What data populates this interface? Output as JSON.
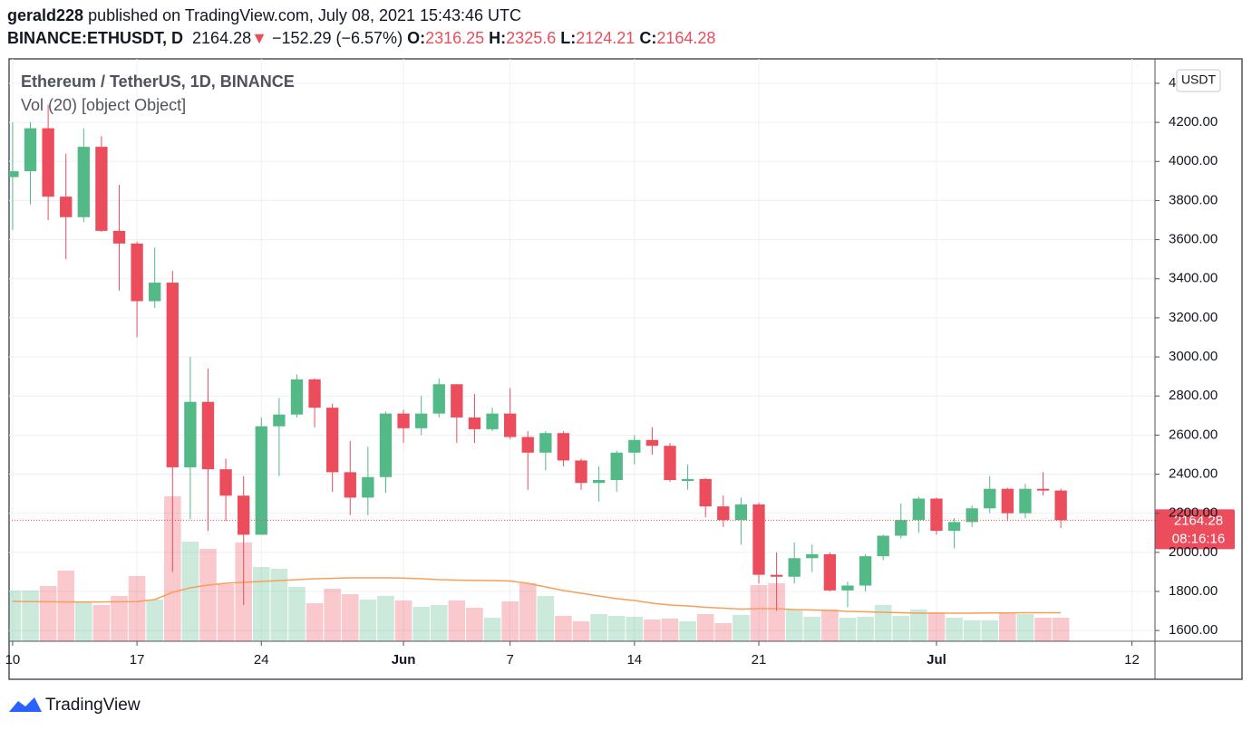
{
  "header": {
    "user": "gerald228",
    "published": "published on TradingView.com, July 08, 2021 15:43:46 UTC",
    "symbol": "BINANCE:ETHUSDT, D",
    "arrow": "▼",
    "change": "−152.29 (−6.57%)",
    "o": "O:",
    "h": "H:",
    "l": "L:",
    "c": "C:"
  },
  "chart_data": {
    "type": "candlestick",
    "title": "Ethereum / TetherUS, 1D, BINANCE",
    "volume_title": "Vol (20) [object Object]",
    "currency": "USDT",
    "countdown": "08:16:16",
    "up_color": "#53b987",
    "down_color": "#eb4d5c",
    "ma_color": "#f5a05a",
    "grid": true,
    "open": [
      3920,
      3950,
      4170,
      3820,
      3715,
      4075,
      3645,
      3580,
      3285,
      3380,
      2435,
      2770,
      2425,
      2290,
      2090,
      2645,
      2705,
      2885,
      2740,
      2410,
      2280,
      2385,
      2710,
      2635,
      2710,
      2860,
      2690,
      2630,
      2710,
      2590,
      2510,
      2610,
      2470,
      2355,
      2370,
      2510,
      2575,
      2545,
      2365,
      2375,
      2235,
      2165,
      2245,
      1885,
      1875,
      1970,
      1990,
      1805,
      1830,
      1980,
      2085,
      2165,
      2275,
      2110,
      2155,
      2225,
      2325,
      2200,
      2325,
      2316.25
    ],
    "high": [
      4200,
      4200,
      4290,
      4040,
      4170,
      4130,
      3880,
      3590,
      3560,
      3440,
      3000,
      2940,
      2480,
      2390,
      2690,
      2790,
      2910,
      2890,
      2760,
      2570,
      2540,
      2720,
      2730,
      2800,
      2890,
      2860,
      2810,
      2740,
      2840,
      2620,
      2620,
      2620,
      2480,
      2440,
      2520,
      2600,
      2640,
      2560,
      2450,
      2380,
      2290,
      2280,
      2255,
      2000,
      2050,
      2040,
      2000,
      1850,
      1990,
      2090,
      2250,
      2285,
      2280,
      2175,
      2240,
      2390,
      2330,
      2350,
      2410,
      2325.6
    ],
    "low": [
      3650,
      3780,
      3700,
      3500,
      3690,
      3640,
      3340,
      3100,
      3250,
      1900,
      2170,
      2110,
      2160,
      1730,
      2090,
      2390,
      2690,
      2640,
      2310,
      2190,
      2190,
      2305,
      2560,
      2600,
      2690,
      2560,
      2560,
      2620,
      2580,
      2320,
      2420,
      2440,
      2320,
      2260,
      2310,
      2450,
      2500,
      2360,
      2320,
      2180,
      2130,
      2040,
      1840,
      1700,
      1840,
      1900,
      1800,
      1720,
      1800,
      1960,
      2070,
      2100,
      2090,
      2020,
      2130,
      2200,
      2160,
      2175,
      2290,
      2124.21
    ],
    "close": [
      3950,
      4170,
      3820,
      3715,
      4075,
      3645,
      3580,
      3285,
      3380,
      2435,
      2770,
      2425,
      2290,
      2090,
      2645,
      2705,
      2885,
      2740,
      2410,
      2280,
      2385,
      2710,
      2635,
      2710,
      2860,
      2690,
      2630,
      2710,
      2590,
      2510,
      2610,
      2470,
      2355,
      2370,
      2510,
      2575,
      2545,
      2370,
      2375,
      2235,
      2165,
      2245,
      1885,
      1875,
      1970,
      1990,
      1805,
      1830,
      1980,
      2085,
      2165,
      2275,
      2110,
      2155,
      2225,
      2325,
      2200,
      2325,
      2316,
      2164.28
    ],
    "volume": [
      560,
      560,
      610,
      780,
      440,
      400,
      500,
      720,
      460,
      1600,
      1100,
      1020,
      630,
      1090,
      820,
      800,
      600,
      420,
      580,
      520,
      460,
      500,
      450,
      380,
      400,
      450,
      370,
      260,
      440,
      640,
      500,
      280,
      220,
      300,
      280,
      270,
      240,
      250,
      220,
      300,
      200,
      290,
      620,
      640,
      350,
      270,
      350,
      260,
      270,
      400,
      280,
      350,
      320,
      260,
      230,
      230,
      320,
      300,
      260,
      260
    ],
    "volume_ma": [
      440,
      438,
      436,
      434,
      434,
      434,
      436,
      438,
      460,
      540,
      590,
      620,
      640,
      650,
      660,
      670,
      680,
      690,
      695,
      700,
      700,
      700,
      698,
      690,
      680,
      675,
      672,
      670,
      665,
      640,
      600,
      560,
      530,
      500,
      470,
      450,
      420,
      400,
      390,
      375,
      365,
      355,
      360,
      360,
      350,
      345,
      340,
      330,
      325,
      320,
      315,
      310,
      310,
      310,
      310,
      312,
      312,
      315,
      315,
      315
    ],
    "volume_ylim": [
      0,
      6430
    ],
    "ylim": [
      1545,
      4525
    ],
    "yticks": [
      {
        "value": 1600,
        "label": "1600.00"
      },
      {
        "value": 1800,
        "label": "1800.00"
      },
      {
        "value": 2000,
        "label": "2000.00"
      },
      {
        "value": 2200,
        "label": "2200.00"
      },
      {
        "value": 2400,
        "label": "2400.00"
      },
      {
        "value": 2600,
        "label": "2600.00"
      },
      {
        "value": 2800,
        "label": "2800.00"
      },
      {
        "value": 3000,
        "label": "3000.00"
      },
      {
        "value": 3200,
        "label": "3200.00"
      },
      {
        "value": 3400,
        "label": "3400.00"
      },
      {
        "value": 3600,
        "label": "3600.00"
      },
      {
        "value": 3800,
        "label": "3800.00"
      },
      {
        "value": 4000,
        "label": "4000.00"
      },
      {
        "value": 4200,
        "label": "4200.00"
      },
      {
        "value": 4400,
        "label": "4400.00"
      }
    ],
    "xlim": [
      -0.2,
      64.3
    ],
    "xticks": [
      {
        "value": 0,
        "label": "10"
      },
      {
        "value": 7,
        "label": "17"
      },
      {
        "value": 14,
        "label": "24"
      },
      {
        "value": 22,
        "label": "Jun"
      },
      {
        "value": 28,
        "label": "7"
      },
      {
        "value": 35,
        "label": "14"
      },
      {
        "value": 42,
        "label": "21"
      },
      {
        "value": 52,
        "label": "Jul"
      },
      {
        "value": 63,
        "label": "12"
      }
    ]
  },
  "footer": {
    "brand": "TradingView"
  }
}
